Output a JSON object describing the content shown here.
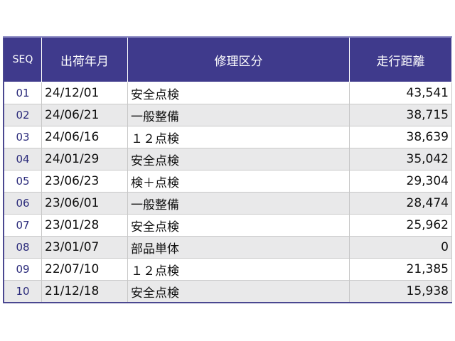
{
  "headers": {
    "seq": "SEQ",
    "date": "出荷年月",
    "repair": "修理区分",
    "distance": "走行距離"
  },
  "rows": [
    {
      "seq": "01",
      "date": "24/12/01",
      "repair": "安全点検",
      "distance": "43,541"
    },
    {
      "seq": "02",
      "date": "24/06/21",
      "repair": "一般整備",
      "distance": "38,715"
    },
    {
      "seq": "03",
      "date": "24/06/16",
      "repair": "１２点検",
      "distance": "38,639"
    },
    {
      "seq": "04",
      "date": "24/01/29",
      "repair": "安全点検",
      "distance": "35,042"
    },
    {
      "seq": "05",
      "date": "23/06/23",
      "repair": "検＋点検",
      "distance": "29,304"
    },
    {
      "seq": "06",
      "date": "23/06/01",
      "repair": "一般整備",
      "distance": "28,474"
    },
    {
      "seq": "07",
      "date": "23/01/28",
      "repair": "安全点検",
      "distance": "25,962"
    },
    {
      "seq": "08",
      "date": "23/01/07",
      "repair": "部品単体",
      "distance": "0"
    },
    {
      "seq": "09",
      "date": "22/07/10",
      "repair": "１２点検",
      "distance": "21,385"
    },
    {
      "seq": "10",
      "date": "21/12/18",
      "repair": "安全点検",
      "distance": "15,938"
    }
  ]
}
